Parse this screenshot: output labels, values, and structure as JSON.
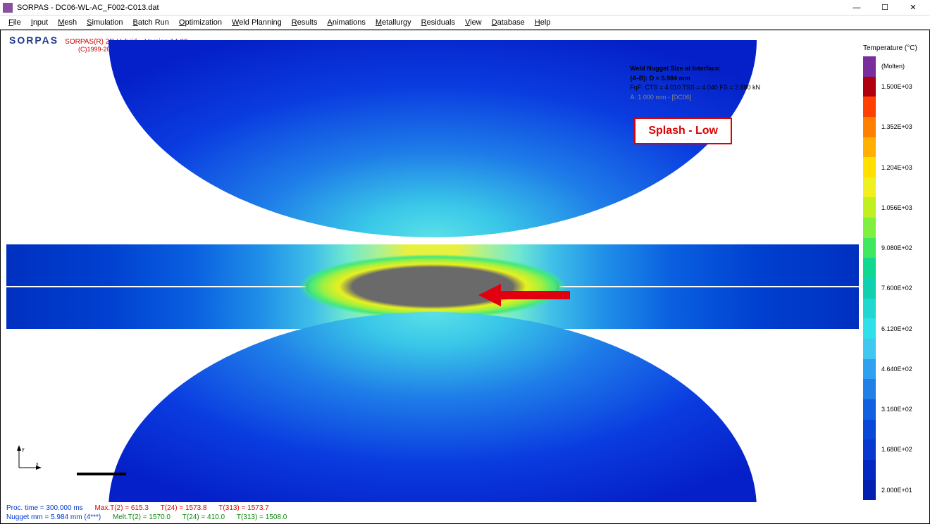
{
  "window": {
    "title": "SORPAS - DC06-WL-AC_F002-C013.dat"
  },
  "menus": [
    "File",
    "Input",
    "Mesh",
    "Simulation",
    "Batch Run",
    "Optimization",
    "Weld Planning",
    "Results",
    "Animations",
    "Metallurgy",
    "Residuals",
    "View",
    "Database",
    "Help"
  ],
  "logo": {
    "brand": "SORPAS",
    "line1": "SORPAS(R) 2D Hybrid – Version 14.00",
    "line2": "(C)1999-2021 by SWANTEC Software and Engineering ApS. All rights reserved."
  },
  "info": {
    "l1": "Weld Nugget Size at Interface:",
    "l2": "(A-B): D = 5.984 mm",
    "l3": "FqF: CTS = 4.010  TSS = 4.040  FS = 2.880 kN",
    "l4": "A: 1.000 mm - [DC06]"
  },
  "callout": "Splash - Low",
  "legend": {
    "title": "Temperature (°C)",
    "items": [
      {
        "color": "#7a2d9c",
        "label": "(Molten)"
      },
      {
        "color": "#b00010",
        "label": "1.500E+03"
      },
      {
        "color": "#ff4000",
        "label": ""
      },
      {
        "color": "#ff8000",
        "label": "1.352E+03"
      },
      {
        "color": "#ffb000",
        "label": ""
      },
      {
        "color": "#ffe000",
        "label": "1.204E+03"
      },
      {
        "color": "#f0f020",
        "label": ""
      },
      {
        "color": "#c0f020",
        "label": "1.056E+03"
      },
      {
        "color": "#80f040",
        "label": ""
      },
      {
        "color": "#40e860",
        "label": "9.080E+02"
      },
      {
        "color": "#10d890",
        "label": ""
      },
      {
        "color": "#10d0b0",
        "label": "7.600E+02"
      },
      {
        "color": "#20d8d0",
        "label": ""
      },
      {
        "color": "#30e0e8",
        "label": "6.120E+02"
      },
      {
        "color": "#40c8f0",
        "label": ""
      },
      {
        "color": "#30a0f0",
        "label": "4.640E+02"
      },
      {
        "color": "#2080e8",
        "label": ""
      },
      {
        "color": "#1060e0",
        "label": "3.160E+02"
      },
      {
        "color": "#0a48d8",
        "label": ""
      },
      {
        "color": "#0838d0",
        "label": "1.680E+02"
      },
      {
        "color": "#0528c0",
        "label": ""
      },
      {
        "color": "#0420b0",
        "label": "2.000E+01"
      }
    ]
  },
  "status": {
    "r1": {
      "a": "Proc. time = 300.000 ms",
      "b": "Max.T(2) =  615.3",
      "c": "T(24) =  1573.8",
      "d": "T(313) =  1573.7"
    },
    "r2": {
      "a": "Nugget mm = 5.984 mm  (4***)",
      "b": "Melt.T(2) = 1570.0",
      "c": "T(24) =  410.0",
      "d": "T(313) = 1508.0"
    }
  },
  "viz": {
    "sheet_gradient_center": "#e8f040",
    "nugget_color": "#6a6a6a",
    "electrode_outer": "#0520c8",
    "electrode_inner": "#5ae0e8",
    "arrow_color": "#e00010"
  }
}
